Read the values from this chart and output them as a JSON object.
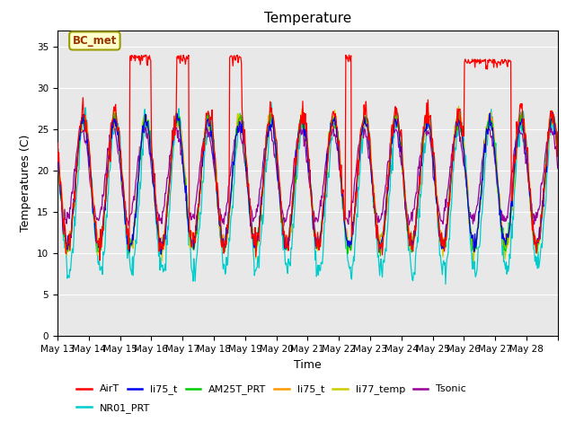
{
  "title": "Temperature",
  "xlabel": "Time",
  "ylabel": "Temperatures (C)",
  "ylim": [
    0,
    37
  ],
  "yticks": [
    0,
    5,
    10,
    15,
    20,
    25,
    30,
    35
  ],
  "plot_bg": "#e8e8e8",
  "legend_labels": [
    "AirT",
    "li75_t",
    "AM25T_PRT",
    "li75_t",
    "li77_temp",
    "Tsonic",
    "NR01_PRT"
  ],
  "legend_colors": [
    "#ff0000",
    "#0000ee",
    "#00cc00",
    "#ff9900",
    "#cccc00",
    "#990099",
    "#00cccc"
  ],
  "annotation_text": "BC_met",
  "annotation_bg": "#ffffcc",
  "annotation_edge": "#999900",
  "xticklabels": [
    "May 13",
    "May 14",
    "May 15",
    "May 16",
    "May 17",
    "May 18",
    "May 19",
    "May 20",
    "May 21",
    "May 22",
    "May 23",
    "May 24",
    "May 25",
    "May 26",
    "May 27",
    "May 28"
  ]
}
